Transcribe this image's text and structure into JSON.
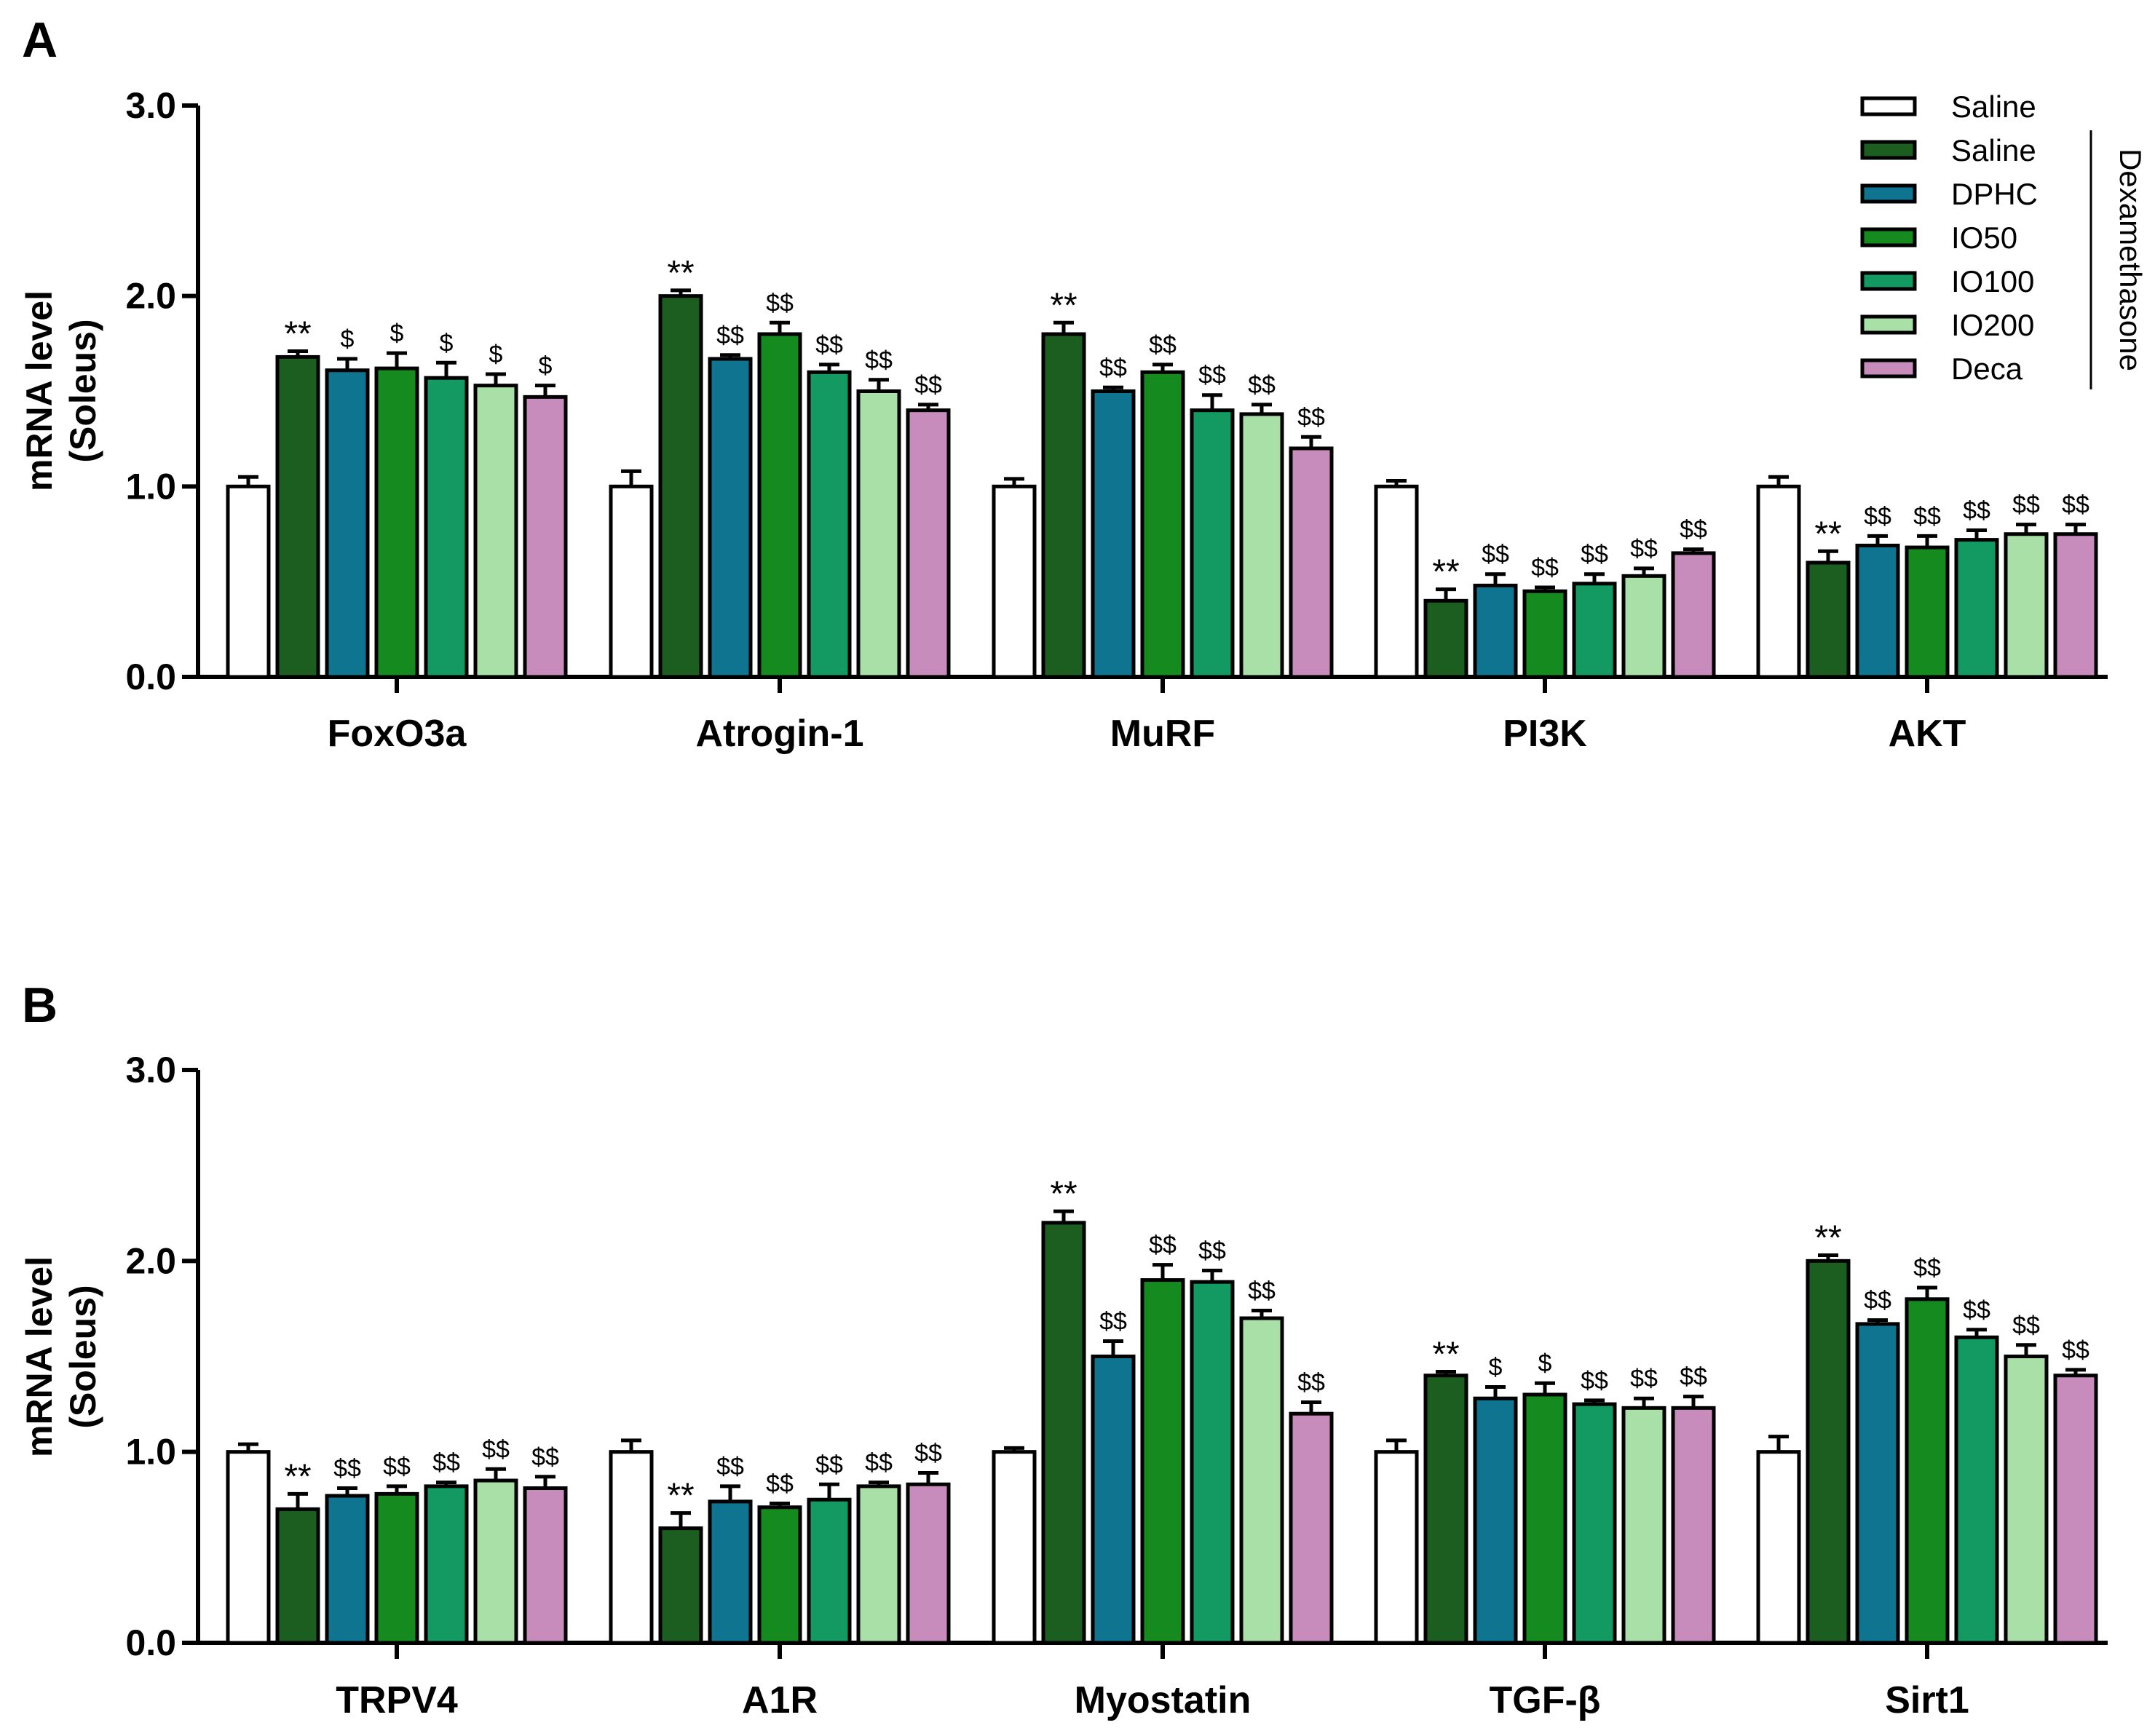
{
  "chart_data": [
    {
      "panel": "A",
      "type": "bar",
      "ylabel": [
        "mRNA level",
        "(Soleus)"
      ],
      "ylim": [
        0,
        3
      ],
      "yticks": [
        "0.0",
        "1.0",
        "2.0",
        "3.0"
      ],
      "categories": [
        "FoxO3a",
        "Atrogin-1",
        "MuRF",
        "PI3K",
        "AKT"
      ],
      "series": [
        {
          "name": "Saline",
          "color": "#ffffff",
          "values": [
            1.0,
            1.0,
            1.0,
            1.0,
            1.0
          ],
          "errors": [
            0.05,
            0.08,
            0.04,
            0.03,
            0.05
          ],
          "sig": [
            "",
            "",
            "",
            "",
            ""
          ]
        },
        {
          "name": "Saline",
          "color": "#1b5e20",
          "values": [
            1.68,
            2.0,
            1.8,
            0.4,
            0.6
          ],
          "errors": [
            0.03,
            0.03,
            0.06,
            0.06,
            0.06
          ],
          "sig": [
            "**",
            "**",
            "**",
            "**",
            "**"
          ]
        },
        {
          "name": "DPHC",
          "color": "#0e7490",
          "values": [
            1.61,
            1.67,
            1.5,
            0.48,
            0.69
          ],
          "errors": [
            0.06,
            0.02,
            0.02,
            0.06,
            0.05
          ],
          "sig": [
            "$",
            "$$",
            "$$",
            "$$",
            "$$"
          ]
        },
        {
          "name": "IO50",
          "color": "#158a1f",
          "values": [
            1.62,
            1.8,
            1.6,
            0.45,
            0.68
          ],
          "errors": [
            0.08,
            0.06,
            0.04,
            0.02,
            0.06
          ],
          "sig": [
            "$",
            "$$",
            "$$",
            "$$",
            "$$"
          ]
        },
        {
          "name": "IO100",
          "color": "#129a62",
          "values": [
            1.57,
            1.6,
            1.4,
            0.49,
            0.72
          ],
          "errors": [
            0.08,
            0.04,
            0.08,
            0.05,
            0.05
          ],
          "sig": [
            "$",
            "$$",
            "$$",
            "$$",
            "$$"
          ]
        },
        {
          "name": "IO200",
          "color": "#a8e0a8",
          "values": [
            1.53,
            1.5,
            1.38,
            0.53,
            0.75
          ],
          "errors": [
            0.06,
            0.06,
            0.05,
            0.04,
            0.05
          ],
          "sig": [
            "$",
            "$$",
            "$$",
            "$$",
            "$$"
          ]
        },
        {
          "name": "Deca",
          "color": "#c88cbc",
          "values": [
            1.47,
            1.4,
            1.2,
            0.65,
            0.75
          ],
          "errors": [
            0.06,
            0.03,
            0.06,
            0.02,
            0.05
          ],
          "sig": [
            "$",
            "$$",
            "$$",
            "$$",
            "$$"
          ]
        }
      ],
      "legend": {
        "entries": [
          "Saline",
          "Saline",
          "DPHC",
          "IO50",
          "IO100",
          "IO200",
          "Deca"
        ],
        "group_label": "Dexamethasone",
        "position": "top-right"
      }
    },
    {
      "panel": "B",
      "type": "bar",
      "ylabel": [
        "mRNA level",
        "(Soleus)"
      ],
      "ylim": [
        0,
        3
      ],
      "yticks": [
        "0.0",
        "1.0",
        "2.0",
        "3.0"
      ],
      "categories": [
        "TRPV4",
        "A1R",
        "Myostatin",
        "TGF-β",
        "Sirt1"
      ],
      "series": [
        {
          "name": "Saline",
          "color": "#ffffff",
          "values": [
            1.0,
            1.0,
            1.0,
            1.0,
            1.0
          ],
          "errors": [
            0.04,
            0.06,
            0.02,
            0.06,
            0.08
          ],
          "sig": [
            "",
            "",
            "",
            "",
            ""
          ]
        },
        {
          "name": "Saline",
          "color": "#1b5e20",
          "values": [
            0.7,
            0.6,
            2.2,
            1.4,
            2.0
          ],
          "errors": [
            0.08,
            0.08,
            0.06,
            0.02,
            0.03
          ],
          "sig": [
            "**",
            "**",
            "**",
            "**",
            "**"
          ]
        },
        {
          "name": "DPHC",
          "color": "#0e7490",
          "values": [
            0.77,
            0.74,
            1.5,
            1.28,
            1.67
          ],
          "errors": [
            0.04,
            0.08,
            0.08,
            0.06,
            0.02
          ],
          "sig": [
            "$$",
            "$$",
            "$$",
            "$",
            "$$"
          ]
        },
        {
          "name": "IO50",
          "color": "#158a1f",
          "values": [
            0.78,
            0.71,
            1.9,
            1.3,
            1.8
          ],
          "errors": [
            0.04,
            0.02,
            0.08,
            0.06,
            0.06
          ],
          "sig": [
            "$$",
            "$$",
            "$$",
            "$",
            "$$"
          ]
        },
        {
          "name": "IO100",
          "color": "#129a62",
          "values": [
            0.82,
            0.75,
            1.89,
            1.25,
            1.6
          ],
          "errors": [
            0.02,
            0.08,
            0.06,
            0.02,
            0.04
          ],
          "sig": [
            "$$",
            "$$",
            "$$",
            "$$",
            "$$"
          ]
        },
        {
          "name": "IO200",
          "color": "#a8e0a8",
          "values": [
            0.85,
            0.82,
            1.7,
            1.23,
            1.5
          ],
          "errors": [
            0.06,
            0.02,
            0.04,
            0.05,
            0.06
          ],
          "sig": [
            "$$",
            "$$",
            "$$",
            "$$",
            "$$"
          ]
        },
        {
          "name": "Deca",
          "color": "#c88cbc",
          "values": [
            0.81,
            0.83,
            1.2,
            1.23,
            1.4
          ],
          "errors": [
            0.06,
            0.06,
            0.06,
            0.06,
            0.03
          ],
          "sig": [
            "$$",
            "$$",
            "$$",
            "$$",
            "$$"
          ]
        }
      ]
    }
  ]
}
